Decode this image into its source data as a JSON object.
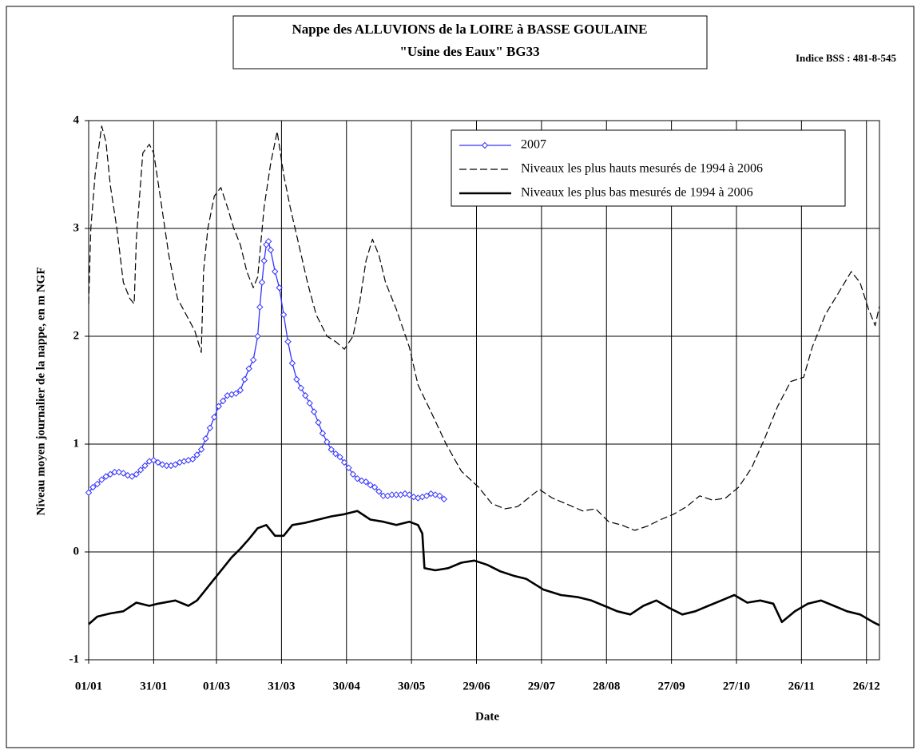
{
  "chart_data": {
    "type": "line",
    "title": "Nappe des ALLUVIONS de la LOIRE à BASSE GOULAINE",
    "subtitle": "\"Usine des Eaux\" BG33",
    "annotation": "Indice BSS : 481-8-545",
    "x_label": "Date",
    "y_label": "Niveau moyen journalier de la nappe, en m NGF",
    "xlim": [
      0,
      365
    ],
    "xticks": [
      {
        "value": 0,
        "label": "01/01"
      },
      {
        "value": 30,
        "label": "31/01"
      },
      {
        "value": 59,
        "label": "01/03"
      },
      {
        "value": 89,
        "label": "31/03"
      },
      {
        "value": 119,
        "label": "30/04"
      },
      {
        "value": 149,
        "label": "30/05"
      },
      {
        "value": 179,
        "label": "29/06"
      },
      {
        "value": 209,
        "label": "29/07"
      },
      {
        "value": 239,
        "label": "28/08"
      },
      {
        "value": 269,
        "label": "27/09"
      },
      {
        "value": 299,
        "label": "27/10"
      },
      {
        "value": 329,
        "label": "26/11"
      },
      {
        "value": 359,
        "label": "26/12"
      }
    ],
    "ylim": [
      -1,
      4
    ],
    "yticks": [
      -1,
      0,
      1,
      2,
      3,
      4
    ],
    "grid": true,
    "legend": "top-right",
    "series": [
      {
        "name": "2007",
        "color": "#3333ff",
        "style": "solid",
        "marker": "diamond",
        "x": [
          0,
          2,
          4,
          6,
          8,
          10,
          12,
          14,
          16,
          18,
          20,
          22,
          24,
          26,
          28,
          30,
          32,
          34,
          36,
          38,
          40,
          42,
          44,
          46,
          48,
          50,
          52,
          54,
          56,
          58,
          60,
          62,
          64,
          66,
          68,
          70,
          72,
          74,
          76,
          78,
          79,
          80,
          81,
          82,
          83,
          84,
          86,
          88,
          90,
          92,
          94,
          96,
          98,
          100,
          102,
          104,
          106,
          108,
          110,
          112,
          114,
          116,
          118,
          120,
          122,
          124,
          126,
          128,
          130,
          132,
          134,
          136,
          138,
          140,
          142,
          144,
          146,
          148,
          150,
          152,
          154,
          156,
          158,
          160,
          162,
          164
        ],
        "values": [
          0.55,
          0.6,
          0.63,
          0.67,
          0.7,
          0.72,
          0.74,
          0.74,
          0.73,
          0.71,
          0.7,
          0.72,
          0.76,
          0.8,
          0.84,
          0.85,
          0.83,
          0.81,
          0.8,
          0.8,
          0.81,
          0.83,
          0.84,
          0.85,
          0.86,
          0.9,
          0.95,
          1.05,
          1.15,
          1.25,
          1.35,
          1.4,
          1.45,
          1.46,
          1.47,
          1.5,
          1.6,
          1.7,
          1.78,
          2.0,
          2.27,
          2.5,
          2.7,
          2.85,
          2.88,
          2.8,
          2.6,
          2.45,
          2.2,
          1.95,
          1.75,
          1.6,
          1.52,
          1.45,
          1.38,
          1.3,
          1.2,
          1.1,
          1.02,
          0.95,
          0.91,
          0.88,
          0.83,
          0.78,
          0.72,
          0.68,
          0.66,
          0.65,
          0.62,
          0.6,
          0.56,
          0.52,
          0.52,
          0.53,
          0.53,
          0.53,
          0.54,
          0.53,
          0.51,
          0.5,
          0.51,
          0.52,
          0.54,
          0.53,
          0.52,
          0.49
        ]
      },
      {
        "name": "Niveaux les plus hauts mesurés de 1994 à 2006",
        "color": "#000000",
        "style": "dashed",
        "marker": "none",
        "x": [
          0,
          1,
          3,
          6,
          8,
          10,
          13,
          16,
          19,
          21,
          22,
          25,
          28,
          30,
          33,
          37,
          41,
          45,
          49,
          52,
          53,
          55,
          58,
          61,
          64,
          67,
          70,
          73,
          76,
          78,
          81,
          84,
          87,
          90,
          93,
          97,
          101,
          105,
          110,
          114,
          118,
          122,
          125,
          128,
          131,
          134,
          137,
          142,
          148,
          152,
          158,
          165,
          172,
          180,
          186,
          192,
          198,
          203,
          208,
          214,
          220,
          228,
          234,
          240,
          246,
          252,
          258,
          264,
          270,
          276,
          282,
          288,
          294,
          300,
          306,
          312,
          318,
          324,
          330,
          334,
          340,
          346,
          352,
          356,
          360,
          363,
          365
        ],
        "values": [
          2.3,
          3.0,
          3.5,
          3.95,
          3.8,
          3.4,
          3.0,
          2.5,
          2.35,
          2.3,
          2.9,
          3.7,
          3.78,
          3.7,
          3.3,
          2.75,
          2.35,
          2.2,
          2.05,
          1.85,
          2.6,
          3.0,
          3.3,
          3.38,
          3.2,
          3.0,
          2.85,
          2.6,
          2.45,
          2.55,
          3.2,
          3.6,
          3.9,
          3.5,
          3.2,
          2.85,
          2.5,
          2.2,
          2.0,
          1.95,
          1.88,
          2.0,
          2.3,
          2.7,
          2.9,
          2.75,
          2.5,
          2.25,
          1.9,
          1.55,
          1.3,
          1.0,
          0.75,
          0.6,
          0.45,
          0.4,
          0.42,
          0.5,
          0.58,
          0.5,
          0.45,
          0.38,
          0.4,
          0.28,
          0.25,
          0.2,
          0.24,
          0.3,
          0.35,
          0.42,
          0.52,
          0.48,
          0.5,
          0.6,
          0.78,
          1.05,
          1.35,
          1.58,
          1.62,
          1.9,
          2.2,
          2.4,
          2.6,
          2.5,
          2.25,
          2.1,
          2.28
        ]
      },
      {
        "name": "Niveaux les plus bas mesurés de 1994 à 2006",
        "color": "#000000",
        "style": "bold",
        "marker": "none",
        "x": [
          0,
          4,
          10,
          16,
          22,
          28,
          32,
          40,
          46,
          50,
          54,
          58,
          62,
          66,
          70,
          74,
          78,
          82,
          86,
          90,
          94,
          100,
          106,
          112,
          118,
          124,
          130,
          136,
          142,
          148,
          152,
          154,
          155,
          160,
          166,
          172,
          178,
          184,
          190,
          196,
          202,
          210,
          218,
          226,
          232,
          238,
          244,
          250,
          256,
          262,
          268,
          274,
          280,
          286,
          292,
          298,
          304,
          310,
          316,
          320,
          326,
          332,
          338,
          344,
          350,
          356,
          362,
          365
        ],
        "values": [
          -0.67,
          -0.6,
          -0.57,
          -0.55,
          -0.47,
          -0.5,
          -0.48,
          -0.45,
          -0.5,
          -0.45,
          -0.35,
          -0.25,
          -0.15,
          -0.05,
          0.03,
          0.12,
          0.22,
          0.25,
          0.15,
          0.15,
          0.25,
          0.27,
          0.3,
          0.33,
          0.35,
          0.38,
          0.3,
          0.28,
          0.25,
          0.28,
          0.25,
          0.17,
          -0.15,
          -0.17,
          -0.15,
          -0.1,
          -0.08,
          -0.12,
          -0.18,
          -0.22,
          -0.25,
          -0.35,
          -0.4,
          -0.42,
          -0.45,
          -0.5,
          -0.55,
          -0.58,
          -0.5,
          -0.45,
          -0.52,
          -0.58,
          -0.55,
          -0.5,
          -0.45,
          -0.4,
          -0.47,
          -0.45,
          -0.48,
          -0.65,
          -0.55,
          -0.48,
          -0.45,
          -0.5,
          -0.55,
          -0.58,
          -0.65,
          -0.68
        ]
      }
    ]
  }
}
